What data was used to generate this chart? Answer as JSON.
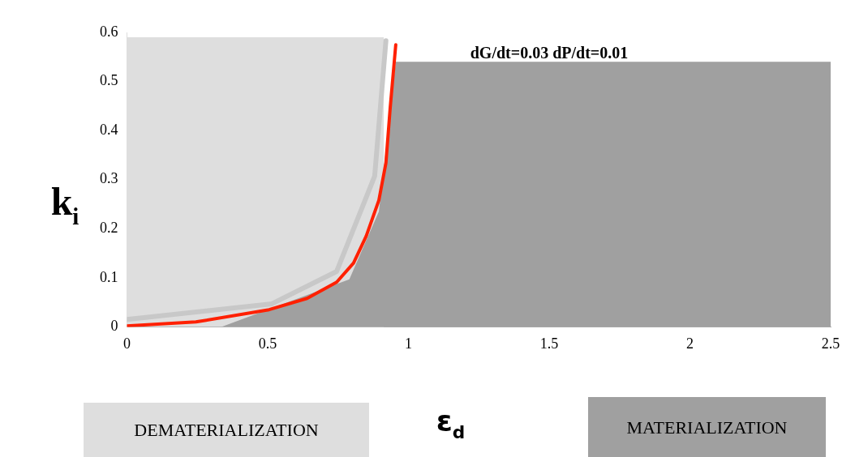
{
  "chart_data": {
    "type": "line",
    "xlabel": "ε$_{d}$",
    "ylabel": "k$_{i}$",
    "annotations": [
      "dG/dt=0.03 dP/dt=0.01"
    ],
    "xlim": [
      0,
      2.5
    ],
    "xticks": [
      0,
      0.5,
      1,
      1.5,
      2,
      2.5
    ],
    "ylim": [
      0,
      0.6
    ],
    "yticks": [
      0,
      0.1,
      0.2,
      0.3,
      0.4,
      0.5,
      0.6
    ],
    "grid": false,
    "legend": "bottom",
    "marker": "none",
    "series": [
      {
        "name": "DEMATERIALIZATION",
        "type": "area",
        "color": "#dedede",
        "x": [
          0,
          0.913
        ],
        "values": [
          0.59,
          0.59
        ]
      },
      {
        "name": "MATERIALIZATION",
        "type": "area",
        "color": "#a0a0a0",
        "x": [
          0.335,
          0.79,
          0.895,
          0.955,
          2.5
        ],
        "values": [
          0,
          0.097,
          0.235,
          0.54,
          0.54
        ]
      },
      {
        "color": "#c8c8c8",
        "x": [
          0,
          0.515,
          0.745,
          0.88,
          0.92
        ],
        "values": [
          0.015,
          0.047,
          0.113,
          0.307,
          0.583
        ]
      },
      {
        "color": "#ff2000",
        "x": [
          0,
          0.245,
          0.505,
          0.64,
          0.745,
          0.805,
          0.85,
          0.895,
          0.92,
          0.935,
          0.955
        ],
        "values": [
          0.002,
          0.01,
          0.035,
          0.058,
          0.091,
          0.13,
          0.185,
          0.258,
          0.334,
          0.445,
          0.575
        ]
      }
    ]
  }
}
